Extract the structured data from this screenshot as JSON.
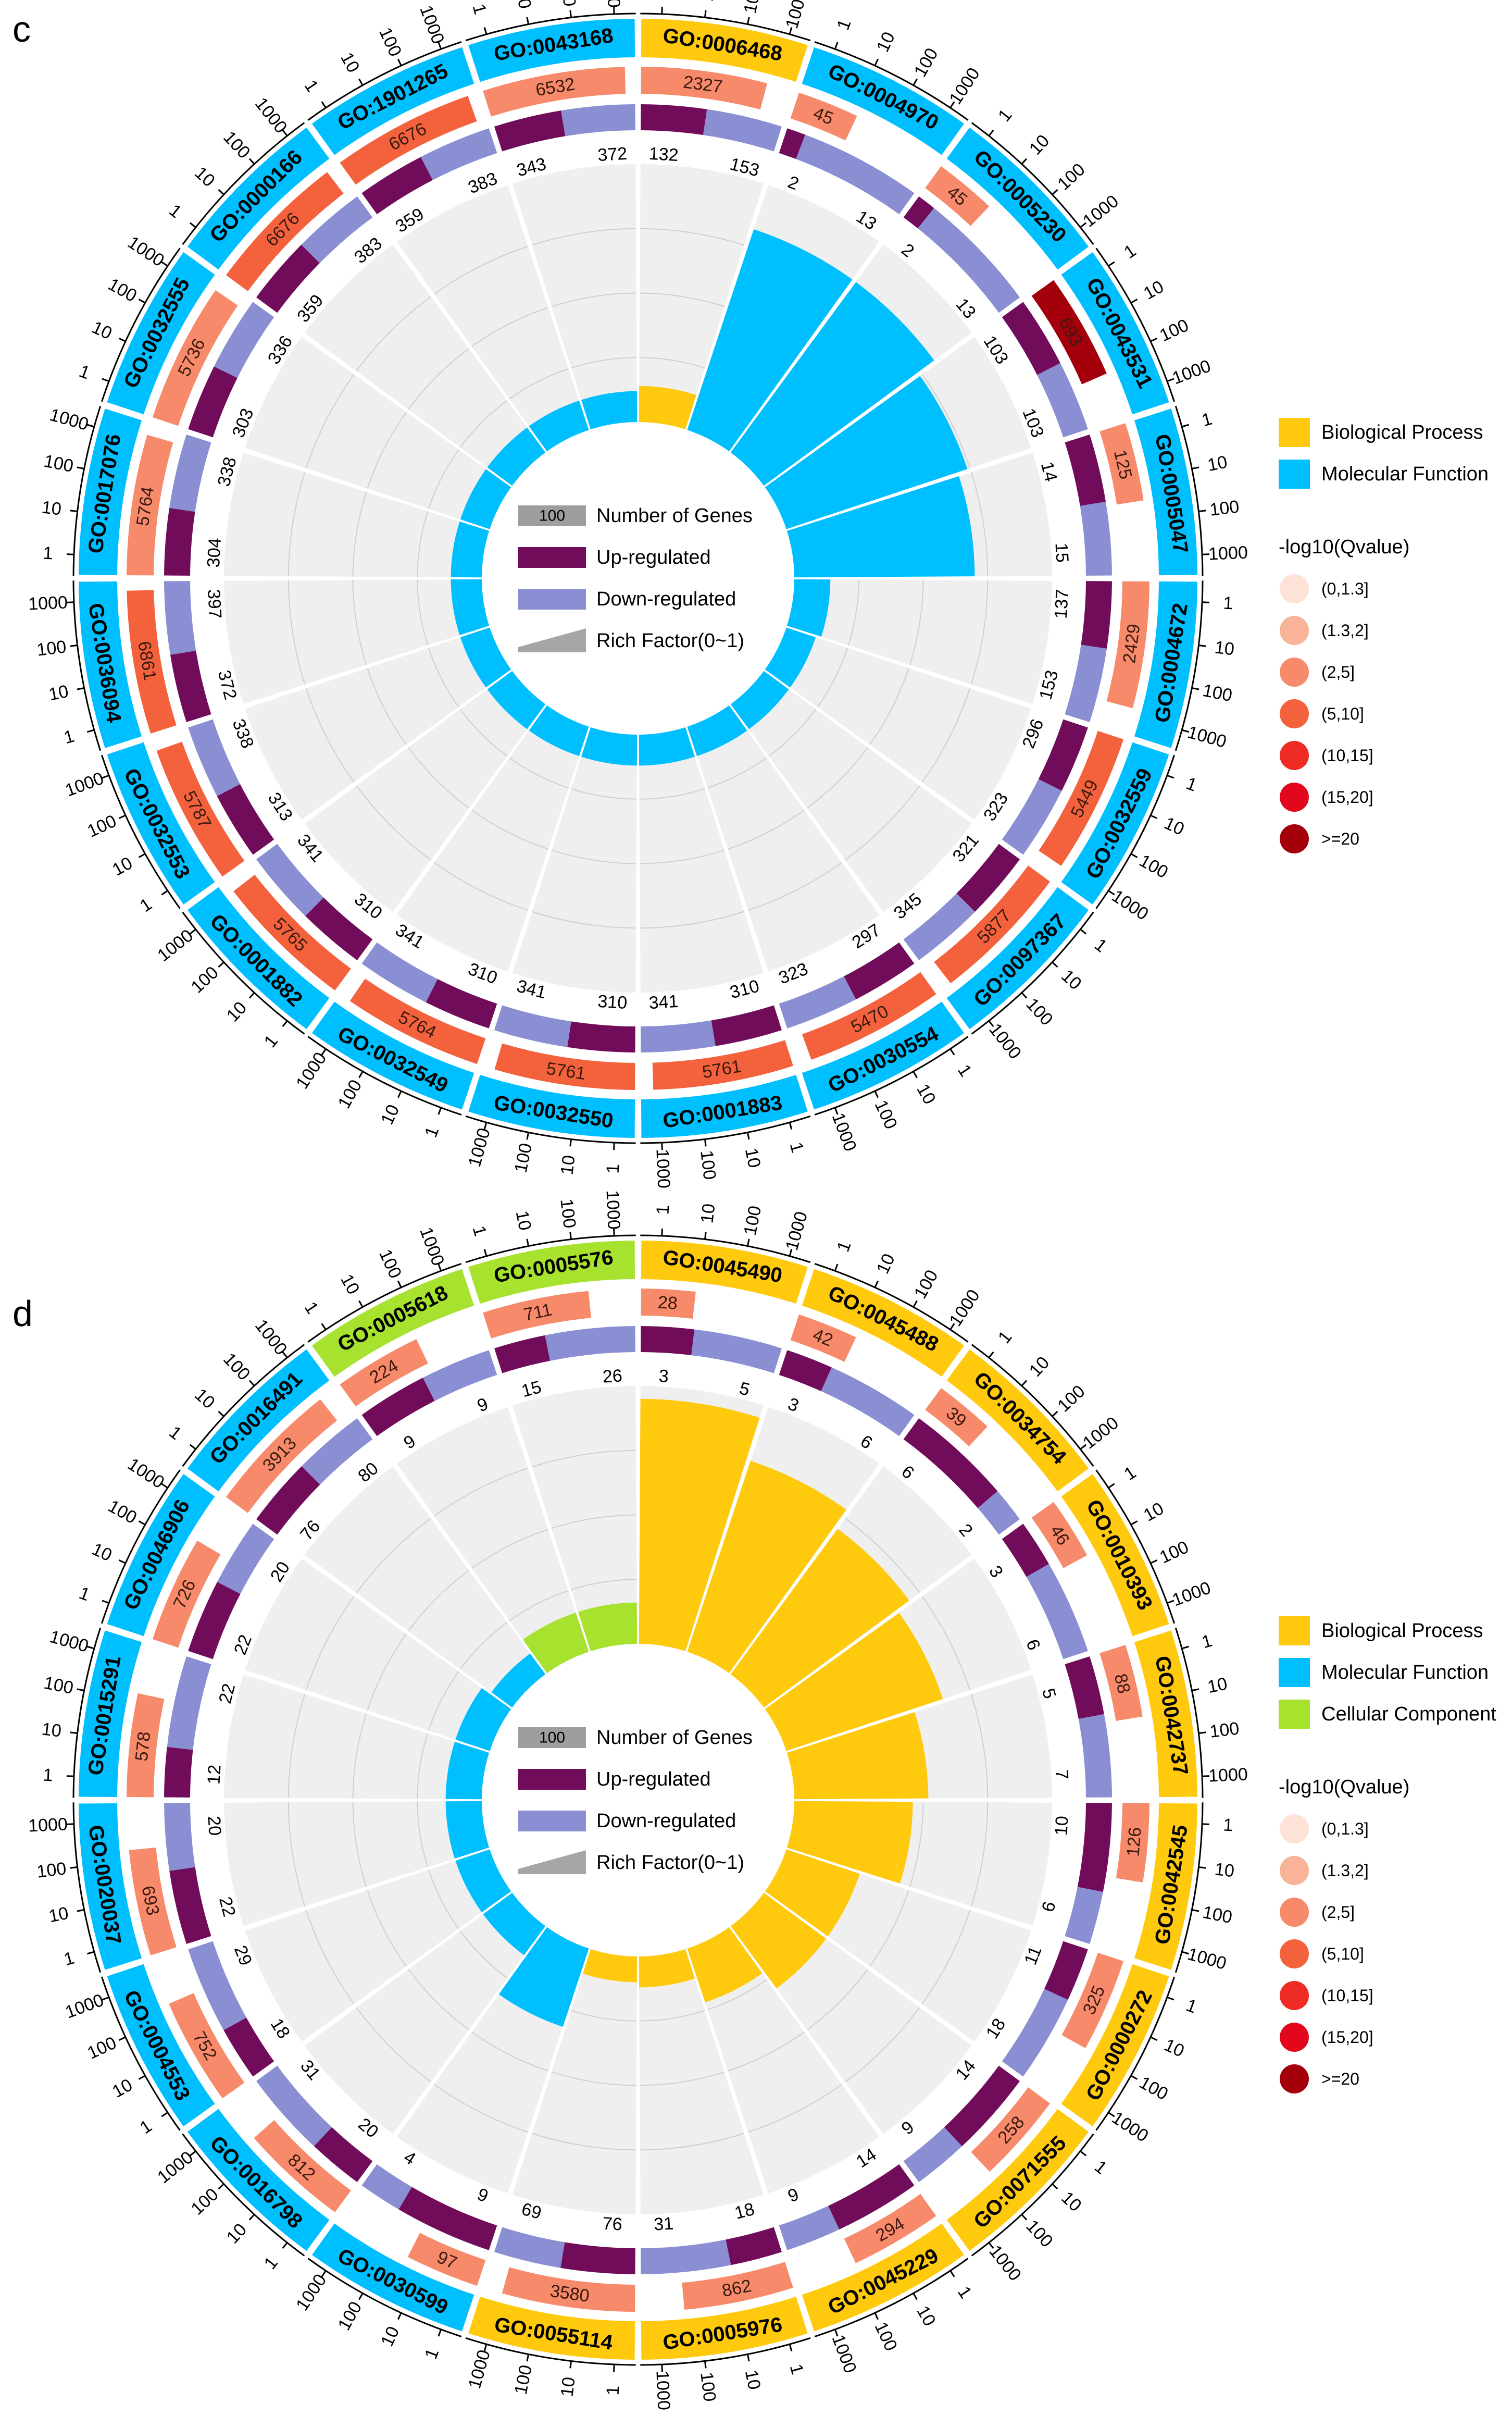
{
  "panels": [
    {
      "label": "c",
      "legend": {
        "categories": [
          {
            "name": "Biological Process",
            "color": "#ffc90e"
          },
          {
            "name": "Molecular Function",
            "color": "#00bfff"
          }
        ],
        "qvalue_title": "-log10(Qvalue)",
        "qvalue_bins": [
          {
            "label": "(0,1.3]",
            "color": "#fde2d7"
          },
          {
            "label": "(1.3,2]",
            "color": "#f9b399"
          },
          {
            "label": "(2,5]",
            "color": "#f78a6a"
          },
          {
            "label": "(5,10]",
            "color": "#f4623d"
          },
          {
            "label": "(10,15]",
            "color": "#ef2b26"
          },
          {
            "label": "(15,20]",
            "color": "#e3071e"
          },
          {
            "label": ">=20",
            "color": "#a4000b"
          }
        ]
      },
      "center_legend": {
        "number_box": "100",
        "number_label": "Number of Genes",
        "up_label": "Up-regulated",
        "down_label": "Down-regulated",
        "rich_label": "Rich Factor(0~1)"
      },
      "scale_ticks": [
        "1",
        "10",
        "100",
        "1000"
      ],
      "chart_data": {
        "type": "circular-bar",
        "title": "",
        "series_names": [
          "Number of Genes",
          "Up-regulated",
          "Down-regulated",
          "Rich Factor(0~1)"
        ],
        "terms": [
          {
            "id": "GO:0006468",
            "category": "BP",
            "genes": "2327",
            "qbin": 2,
            "up": "132",
            "down": "153",
            "rich": 0.14
          },
          {
            "id": "GO:0004970",
            "category": "MF",
            "genes": "45",
            "qbin": 2,
            "up": "2",
            "down": "13",
            "rich": 0.82
          },
          {
            "id": "GO:0005230",
            "category": "MF",
            "genes": "45",
            "qbin": 2,
            "up": "2",
            "down": "13",
            "rich": 0.82
          },
          {
            "id": "GO:0043531",
            "category": "MF",
            "genes": "693",
            "qbin": 6,
            "up": "103",
            "down": "103",
            "rich": 0.74
          },
          {
            "id": "GO:0005047",
            "category": "MF",
            "genes": "125",
            "qbin": 2,
            "up": "14",
            "down": "15",
            "rich": 0.7
          },
          {
            "id": "GO:0004672",
            "category": "MF",
            "genes": "2429",
            "qbin": 2,
            "up": "137",
            "down": "153",
            "rich": 0.14
          },
          {
            "id": "GO:0032559",
            "category": "MF",
            "genes": "5449",
            "qbin": 3,
            "up": "296",
            "down": "323",
            "rich": 0.12
          },
          {
            "id": "GO:0097367",
            "category": "MF",
            "genes": "5877",
            "qbin": 3,
            "up": "321",
            "down": "345",
            "rich": 0.12
          },
          {
            "id": "GO:0030554",
            "category": "MF",
            "genes": "5470",
            "qbin": 3,
            "up": "297",
            "down": "323",
            "rich": 0.12
          },
          {
            "id": "GO:0001883",
            "category": "MF",
            "genes": "5761",
            "qbin": 3,
            "up": "310",
            "down": "341",
            "rich": 0.12
          },
          {
            "id": "GO:0032550",
            "category": "MF",
            "genes": "5761",
            "qbin": 3,
            "up": "310",
            "down": "341",
            "rich": 0.12
          },
          {
            "id": "GO:0032549",
            "category": "MF",
            "genes": "5764",
            "qbin": 3,
            "up": "310",
            "down": "341",
            "rich": 0.12
          },
          {
            "id": "GO:0001882",
            "category": "MF",
            "genes": "5765",
            "qbin": 3,
            "up": "310",
            "down": "341",
            "rich": 0.12
          },
          {
            "id": "GO:0032553",
            "category": "MF",
            "genes": "5787",
            "qbin": 3,
            "up": "313",
            "down": "338",
            "rich": 0.12
          },
          {
            "id": "GO:0036094",
            "category": "MF",
            "genes": "6861",
            "qbin": 3,
            "up": "372",
            "down": "397",
            "rich": 0.12
          },
          {
            "id": "GO:0017076",
            "category": "MF",
            "genes": "5764",
            "qbin": 2,
            "up": "304",
            "down": "338",
            "rich": 0.12
          },
          {
            "id": "GO:0032555",
            "category": "MF",
            "genes": "5736",
            "qbin": 2,
            "up": "303",
            "down": "336",
            "rich": 0.12
          },
          {
            "id": "GO:0000166",
            "category": "MF",
            "genes": "6676",
            "qbin": 3,
            "up": "359",
            "down": "383",
            "rich": 0.12
          },
          {
            "id": "GO:1901265",
            "category": "MF",
            "genes": "6676",
            "qbin": 3,
            "up": "359",
            "down": "383",
            "rich": 0.12
          },
          {
            "id": "GO:0043168",
            "category": "MF",
            "genes": "6532",
            "qbin": 2,
            "up": "343",
            "down": "372",
            "rich": 0.12
          }
        ]
      }
    },
    {
      "label": "d",
      "legend": {
        "categories": [
          {
            "name": "Biological Process",
            "color": "#ffc90e"
          },
          {
            "name": "Molecular Function",
            "color": "#00bfff"
          },
          {
            "name": "Cellular Component",
            "color": "#a6e22e"
          }
        ],
        "qvalue_title": "-log10(Qvalue)",
        "qvalue_bins": [
          {
            "label": "(0,1.3]",
            "color": "#fde2d7"
          },
          {
            "label": "(1.3,2]",
            "color": "#f9b399"
          },
          {
            "label": "(2,5]",
            "color": "#f78a6a"
          },
          {
            "label": "(5,10]",
            "color": "#f4623d"
          },
          {
            "label": "(10,15]",
            "color": "#ef2b26"
          },
          {
            "label": "(15,20]",
            "color": "#e3071e"
          },
          {
            "label": ">=20",
            "color": "#a4000b"
          }
        ]
      },
      "center_legend": {
        "number_box": "100",
        "number_label": "Number of Genes",
        "up_label": "Up-regulated",
        "down_label": "Down-regulated",
        "rich_label": "Rich Factor(0~1)"
      },
      "scale_ticks": [
        "1",
        "10",
        "100",
        "1000"
      ],
      "chart_data": {
        "type": "circular-bar",
        "title": "",
        "series_names": [
          "Number of Genes",
          "Up-regulated",
          "Down-regulated",
          "Rich Factor(0~1)"
        ],
        "terms": [
          {
            "id": "GO:0045490",
            "category": "BP",
            "genes": "28",
            "qbin": 2,
            "up": "3",
            "down": "5",
            "rich": 0.95
          },
          {
            "id": "GO:0045488",
            "category": "BP",
            "genes": "42",
            "qbin": 2,
            "up": "3",
            "down": "6",
            "rich": 0.78
          },
          {
            "id": "GO:0034754",
            "category": "BP",
            "genes": "39",
            "qbin": 2,
            "up": "6",
            "down": "2",
            "rich": 0.7
          },
          {
            "id": "GO:0010393",
            "category": "BP",
            "genes": "46",
            "qbin": 2,
            "up": "3",
            "down": "6",
            "rich": 0.64
          },
          {
            "id": "GO:0042737",
            "category": "BP",
            "genes": "88",
            "qbin": 2,
            "up": "5",
            "down": "7",
            "rich": 0.52
          },
          {
            "id": "GO:0042545",
            "category": "BP",
            "genes": "126",
            "qbin": 2,
            "up": "10",
            "down": "6",
            "rich": 0.46
          },
          {
            "id": "GO:0000272",
            "category": "BP",
            "genes": "325",
            "qbin": 2,
            "up": "11",
            "down": "18",
            "rich": 0.3
          },
          {
            "id": "GO:0071555",
            "category": "BP",
            "genes": "258",
            "qbin": 2,
            "up": "14",
            "down": "9",
            "rich": 0.3
          },
          {
            "id": "GO:0045229",
            "category": "BP",
            "genes": "294",
            "qbin": 2,
            "up": "14",
            "down": "9",
            "rich": 0.22
          },
          {
            "id": "GO:0005976",
            "category": "BP",
            "genes": "862",
            "qbin": 2,
            "up": "18",
            "down": "31",
            "rich": 0.12
          },
          {
            "id": "GO:0055114",
            "category": "BP",
            "genes": "3580",
            "qbin": 2,
            "up": "76",
            "down": "69",
            "rich": 0.1
          },
          {
            "id": "GO:0030599",
            "category": "MF",
            "genes": "97",
            "qbin": 2,
            "up": "9",
            "down": "4",
            "rich": 0.32
          },
          {
            "id": "GO:0016798",
            "category": "MF",
            "genes": "812",
            "qbin": 2,
            "up": "20",
            "down": "31",
            "rich": 0.14
          },
          {
            "id": "GO:0004553",
            "category": "MF",
            "genes": "752",
            "qbin": 2,
            "up": "18",
            "down": "29",
            "rich": 0.14
          },
          {
            "id": "GO:0020037",
            "category": "MF",
            "genes": "693",
            "qbin": 2,
            "up": "22",
            "down": "20",
            "rich": 0.14
          },
          {
            "id": "GO:0015291",
            "category": "MF",
            "genes": "578",
            "qbin": 2,
            "up": "12",
            "down": "22",
            "rich": 0.14
          },
          {
            "id": "GO:0046906",
            "category": "MF",
            "genes": "726",
            "qbin": 2,
            "up": "22",
            "down": "20",
            "rich": 0.14
          },
          {
            "id": "GO:0016491",
            "category": "MF",
            "genes": "3913",
            "qbin": 2,
            "up": "76",
            "down": "80",
            "rich": 0.1
          },
          {
            "id": "GO:0005618",
            "category": "CC",
            "genes": "224",
            "qbin": 2,
            "up": "9",
            "down": "9",
            "rich": 0.16
          },
          {
            "id": "GO:0005576",
            "category": "CC",
            "genes": "711",
            "qbin": 2,
            "up": "15",
            "down": "26",
            "rich": 0.16
          }
        ]
      }
    }
  ]
}
